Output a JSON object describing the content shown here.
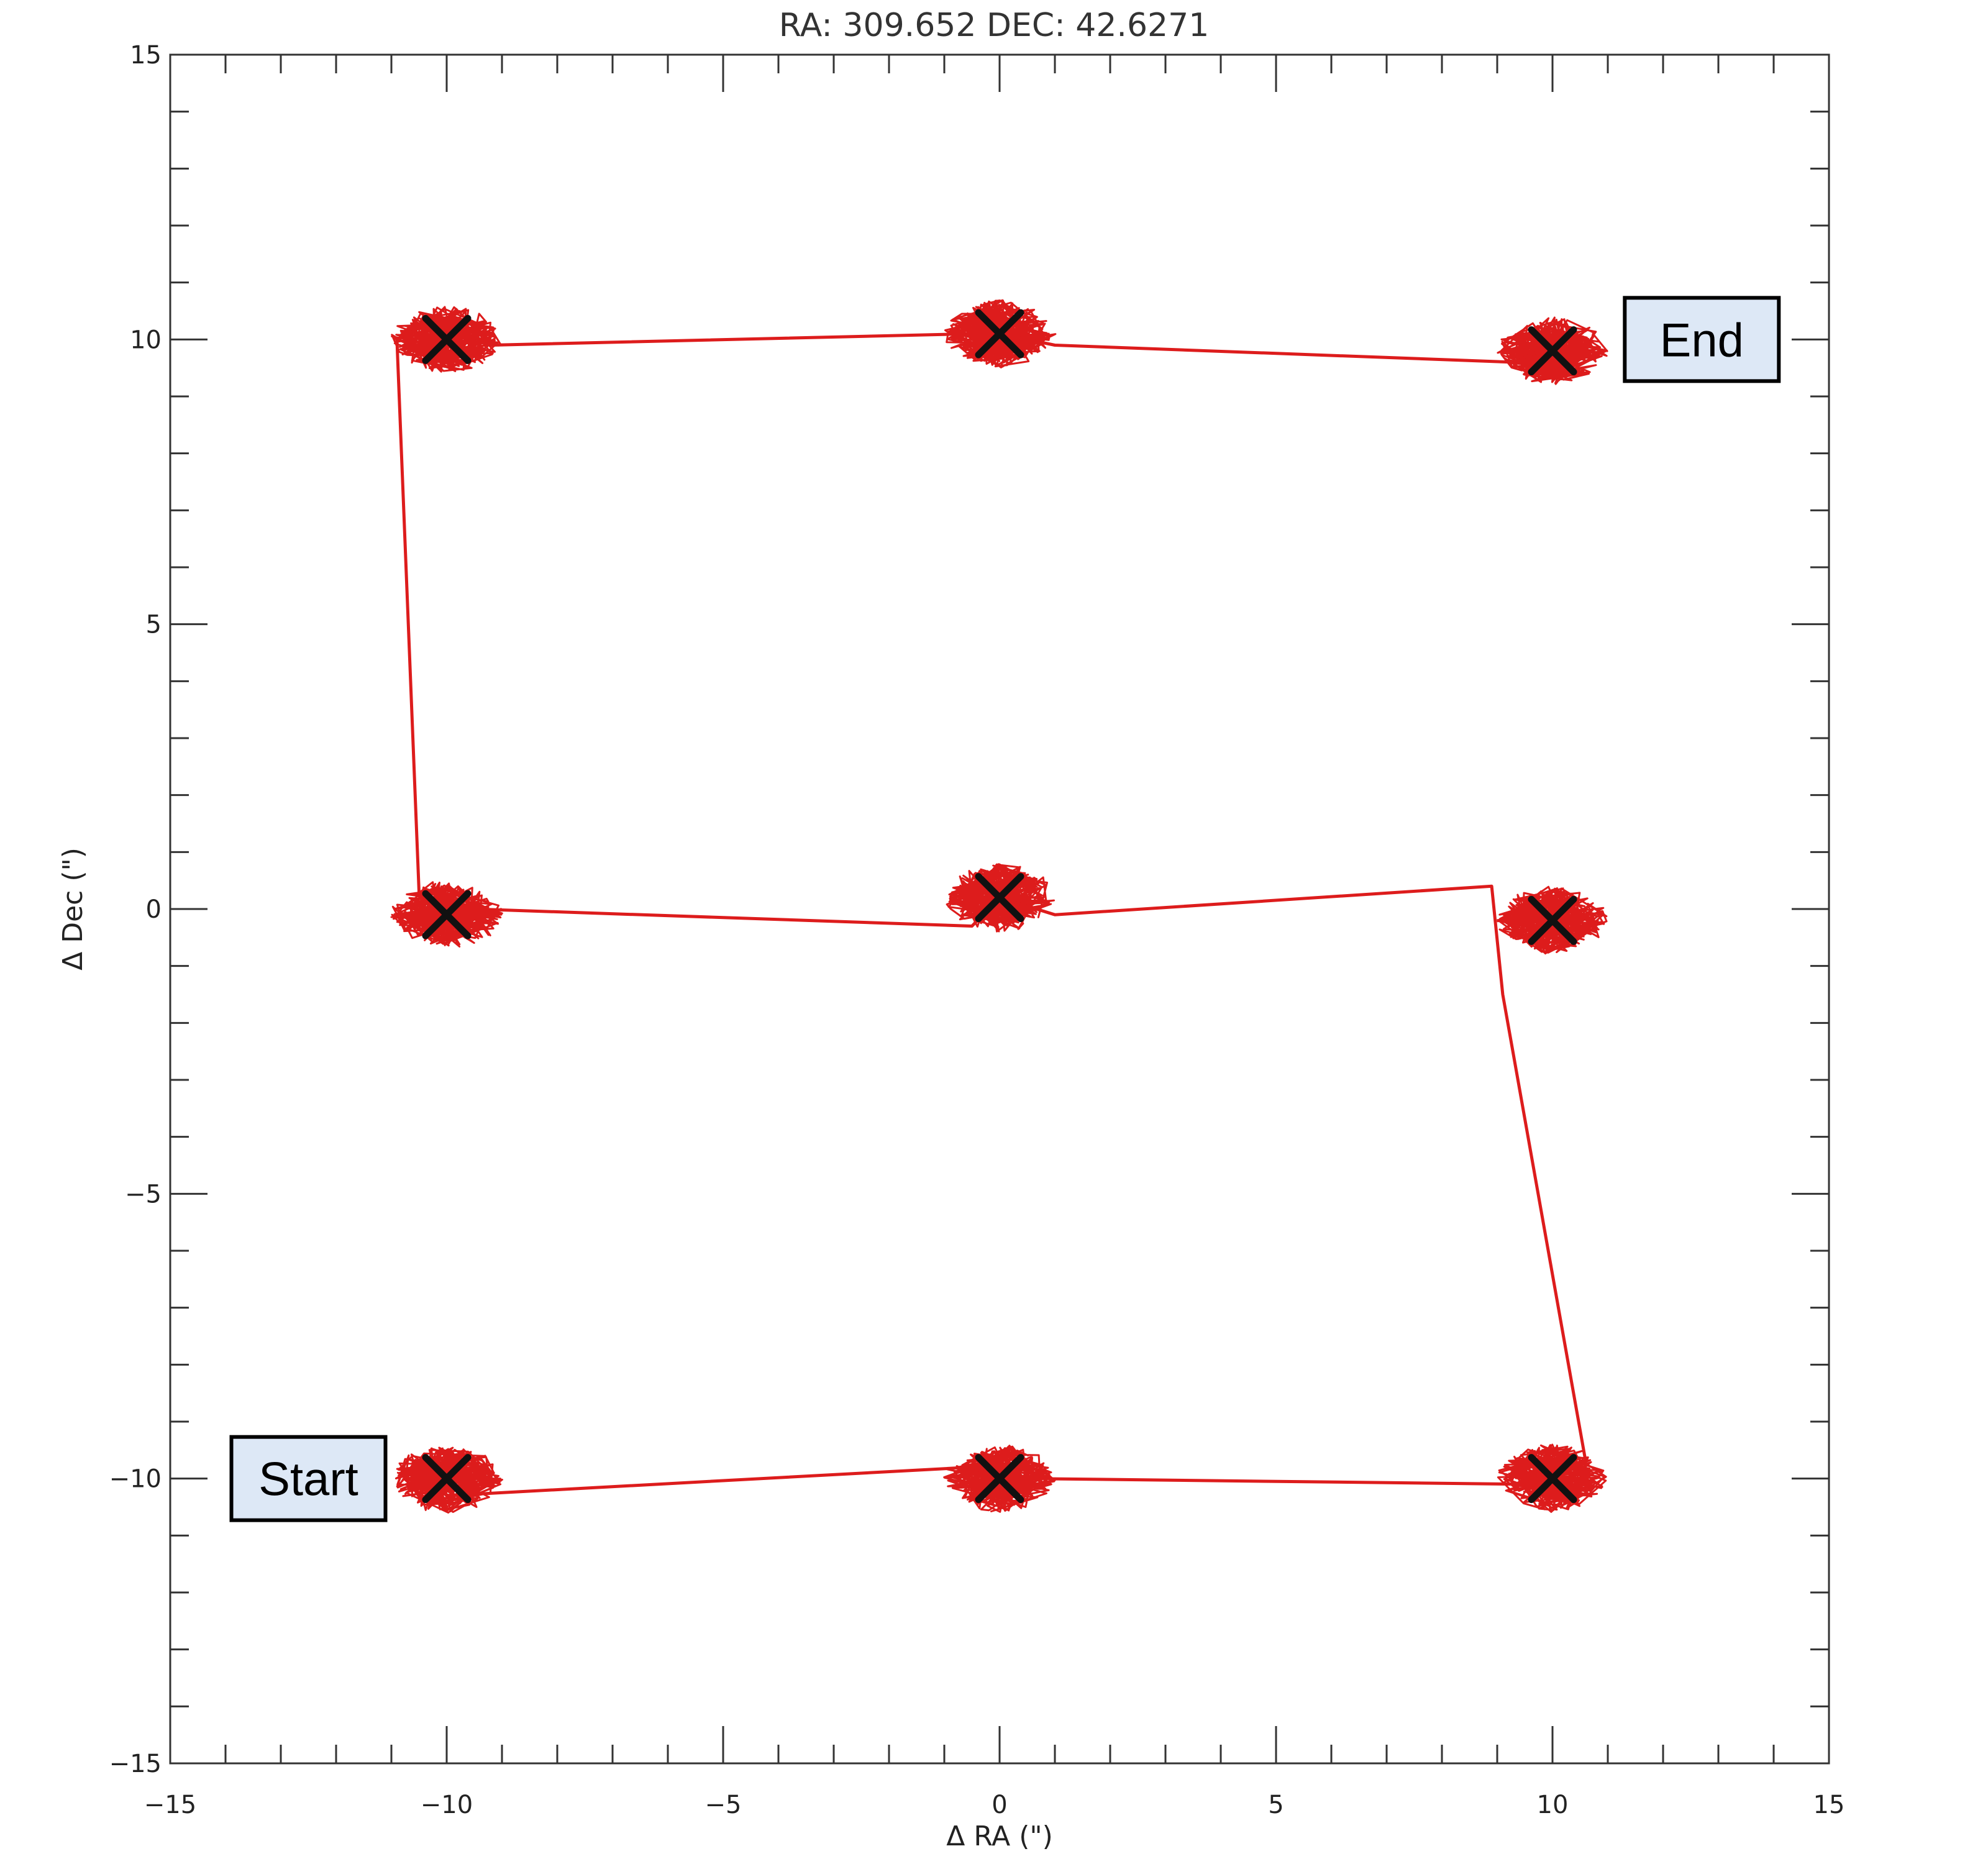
{
  "chart_data": {
    "type": "line",
    "title": "RA: 309.652   DEC: 42.6271",
    "xlabel": "Δ RA (\")",
    "ylabel": "Δ Dec (\")",
    "xlim": [
      -15,
      15
    ],
    "ylim": [
      -15,
      15
    ],
    "xticks": [
      -15,
      -10,
      -5,
      0,
      5,
      10,
      15
    ],
    "yticks": [
      -15,
      -10,
      -5,
      0,
      5,
      10,
      15
    ],
    "xtick_labels": [
      "−15",
      "−10",
      "−5",
      "0",
      "5",
      "10",
      "15"
    ],
    "ytick_labels": [
      "−15",
      "−10",
      "−5",
      "0",
      "5",
      "10",
      "15"
    ],
    "grid": false,
    "track_color": "#dd1c1c",
    "marker_color": "#111111",
    "box_fill": "#dde8f6",
    "track_path": [
      [
        -10.2,
        -10.0
      ],
      [
        -10.0,
        -10.3
      ],
      [
        -0.5,
        -9.8
      ],
      [
        0.0,
        -10.0
      ],
      [
        0.6,
        -10.0
      ],
      [
        9.5,
        -10.1
      ],
      [
        10.0,
        -10.0
      ],
      [
        10.6,
        -9.7
      ],
      [
        9.1,
        -1.5
      ],
      [
        8.9,
        0.4
      ],
      [
        1.0,
        -0.1
      ],
      [
        0.0,
        0.2
      ],
      [
        -0.5,
        -0.3
      ],
      [
        -9.5,
        0.0
      ],
      [
        -10.1,
        -0.1
      ],
      [
        -10.5,
        0.3
      ],
      [
        -10.9,
        10.0
      ],
      [
        -10.5,
        10.2
      ],
      [
        -10.0,
        10.1
      ],
      [
        -9.2,
        9.9
      ],
      [
        -0.5,
        10.1
      ],
      [
        0.0,
        10.1
      ],
      [
        1.0,
        9.9
      ],
      [
        9.3,
        9.6
      ],
      [
        10.0,
        9.9
      ]
    ],
    "dwell_points": [
      {
        "x": -10.0,
        "y": -10.0
      },
      {
        "x": 0.0,
        "y": -10.0
      },
      {
        "x": 10.0,
        "y": -10.0
      },
      {
        "x": 10.0,
        "y": -0.2
      },
      {
        "x": 0.0,
        "y": 0.2
      },
      {
        "x": -10.0,
        "y": -0.1
      },
      {
        "x": -10.0,
        "y": 10.0
      },
      {
        "x": 0.0,
        "y": 10.1
      },
      {
        "x": 10.0,
        "y": 9.8
      }
    ],
    "annotations": [
      {
        "text": "Start",
        "x": -12.5,
        "y": -10.0
      },
      {
        "text": "End",
        "x": 12.7,
        "y": 10.0
      }
    ]
  }
}
